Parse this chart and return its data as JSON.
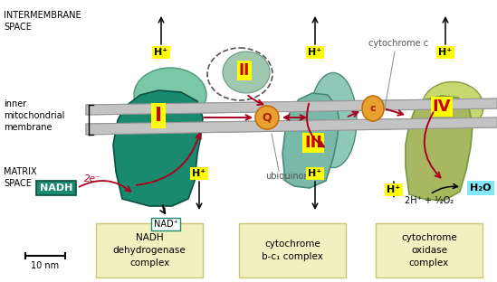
{
  "bg_color": "#ffffff",
  "complex_I_color": "#1a8a6e",
  "complex_I_back_color": "#7ac8a8",
  "complex_II_color": "#98c8b0",
  "complex_II_outline": "#555555",
  "complex_III_color": "#7ab8a8",
  "complex_III_dark": "#5a9888",
  "complex_IV_color": "#a8b860",
  "complex_IV_dark": "#889840",
  "membrane_color": "#b8b8b8",
  "membrane_edge": "#909090",
  "Q_color": "#e8a030",
  "c_color": "#e8a030",
  "label_bg": "#ffff00",
  "label_color": "#cc0000",
  "NADH_bg": "#1a8a6e",
  "H2O_bg": "#80e8f8",
  "box_bg": "#f0f0c0",
  "box_edge": "#c8c870",
  "red_arrow": "#aa0020",
  "black_arrow": "#111111",
  "text_dark": "#333333",
  "intermembrane_text": "INTERMEMBRANE\nSPACE",
  "inner_membrane_text": "inner\nmitochondrial\nmembrane",
  "matrix_text": "MATRIX\nSPACE",
  "scale_text": "10 nm",
  "cytochrome_c_text": "cytochrome c",
  "ubiquinone_text": "ubiquinone",
  "box1_text": "NADH\ndehydrogenase\ncomplex",
  "box2_text": "cytochrome\nb-c₁ complex",
  "box3_text": "cytochrome\noxidase\ncomplex",
  "NADH_text": "NADH",
  "NAD_text": "NAD⁺",
  "H2O_text": "H₂O",
  "reaction_text": "2H⁺ + ½O₂",
  "electrons_text": "2e⁻",
  "Hp": "H⁺"
}
